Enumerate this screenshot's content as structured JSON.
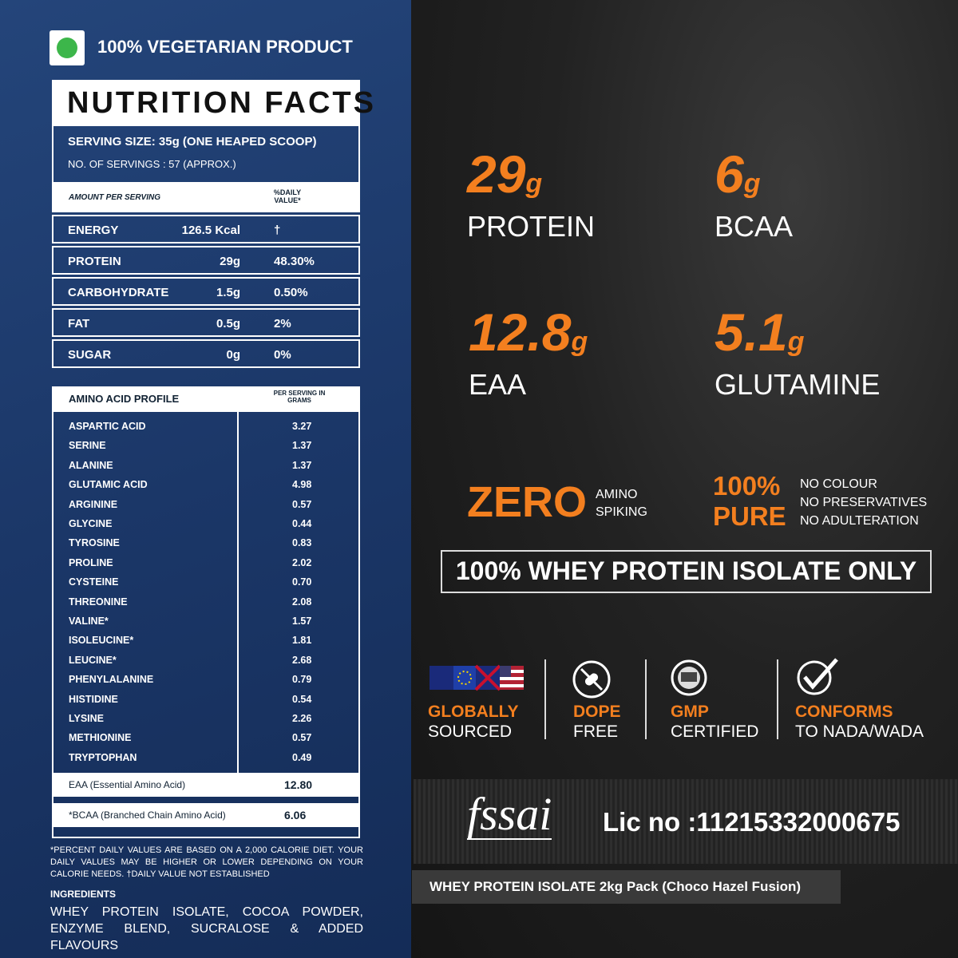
{
  "left": {
    "veg_label": "100% VEGETARIAN PRODUCT",
    "nutrition": {
      "title": "NUTRITION FACTS",
      "serving_size": "SERVING SIZE: 35g (ONE HEAPED SCOOP)",
      "servings": "NO. OF SERVINGS : 57 (APPROX.)",
      "header": [
        "AMOUNT PER SERVING",
        "%DAILY VALUE*"
      ],
      "rows": [
        [
          "ENERGY",
          "126.5 Kcal",
          "†"
        ],
        [
          "PROTEIN",
          "29g",
          "48.30%"
        ],
        [
          "CARBOHYDRATE",
          "1.5g",
          "0.50%"
        ],
        [
          "FAT",
          "0.5g",
          "2%"
        ],
        [
          "SUGAR",
          "0g",
          "0%"
        ]
      ]
    },
    "amino": {
      "header": [
        "AMINO ACID PROFILE",
        "PER SERVING IN GRAMS"
      ],
      "rows": [
        [
          "ASPARTIC ACID",
          "3.27"
        ],
        [
          "SERINE",
          "1.37"
        ],
        [
          "ALANINE",
          "1.37"
        ],
        [
          "GLUTAMIC ACID",
          "4.98"
        ],
        [
          "ARGININE",
          "0.57"
        ],
        [
          "GLYCINE",
          "0.44"
        ],
        [
          "TYROSINE",
          "0.83"
        ],
        [
          "PROLINE",
          "2.02"
        ],
        [
          "CYSTEINE",
          "0.70"
        ],
        [
          "THREONINE",
          "2.08"
        ],
        [
          "VALINE*",
          "1.57"
        ],
        [
          "ISOLEUCINE*",
          "1.81"
        ],
        [
          "LEUCINE*",
          "2.68"
        ],
        [
          "PHENYLALANINE",
          "0.79"
        ],
        [
          "HISTIDINE",
          "0.54"
        ],
        [
          "LYSINE",
          "2.26"
        ],
        [
          "METHIONINE",
          "0.57"
        ],
        [
          "TRYPTOPHAN",
          "0.49"
        ]
      ],
      "totals": [
        [
          "EAA (Essential Amino Acid)",
          "12.80"
        ],
        [
          "*BCAA (Branched Chain Amino Acid)",
          "6.06"
        ]
      ]
    },
    "footnote": "*PERCENT DAILY VALUES ARE BASED ON A 2,000 CALORIE DIET. YOUR DAILY VALUES MAY BE HIGHER OR LOWER DEPENDING ON YOUR CALORIE NEEDS. †DAILY VALUE NOT ESTABLISHED",
    "ingredients_title": "INGREDIENTS",
    "ingredients": "WHEY PROTEIN ISOLATE, COCOA POWDER, ENZYME BLEND, SUCRALOSE & ADDED FLAVOURS"
  },
  "right": {
    "stats": [
      {
        "value": "29",
        "unit": "g",
        "label": "PROTEIN"
      },
      {
        "value": "6",
        "unit": "g",
        "label": "BCAA"
      },
      {
        "value": "12.8",
        "unit": "g",
        "label": "EAA"
      },
      {
        "value": "5.1",
        "unit": "g",
        "label": "GLUTAMINE"
      }
    ],
    "zero": {
      "big": "ZERO",
      "small": [
        "AMINO",
        "SPIKING"
      ]
    },
    "pure": {
      "big": [
        "100%",
        "PURE"
      ],
      "small": [
        "NO COLOUR",
        "NO PRESERVATIVES",
        "NO ADULTERATION"
      ]
    },
    "banner": "100% WHEY PROTEIN ISOLATE ONLY",
    "badges": [
      [
        "GLOBALLY",
        "SOURCED"
      ],
      [
        "DOPE",
        "FREE"
      ],
      [
        "GMP",
        "CERTIFIED"
      ],
      [
        "CONFORMS",
        "TO NADA/WADA"
      ]
    ],
    "fssai": "fssai",
    "license": "Lic no :11215332000675",
    "product": "WHEY PROTEIN ISOLATE 2kg Pack (Choco Hazel Fusion)"
  }
}
